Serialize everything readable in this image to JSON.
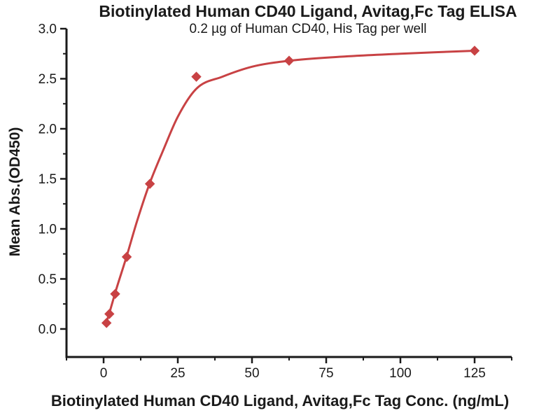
{
  "chart_data": {
    "type": "scatter",
    "title": "Biotinylated Human CD40 Ligand, Avitag,Fc Tag ELISA",
    "subtitle": "0.2 µg of Human CD40, His Tag per well",
    "xlabel": "Biotinylated Human CD40 Ligand, Avitag,Fc Tag Conc. (ng/mL)",
    "ylabel": "Mean Abs.(OD450)",
    "xlim": [
      -12.5,
      137.5
    ],
    "ylim": [
      -0.28,
      3.0
    ],
    "x_major_ticks": [
      0,
      25,
      50,
      75,
      100,
      125
    ],
    "x_minor_ticks": [
      -12.5,
      12.5,
      37.5,
      62.5,
      87.5,
      112.5,
      137.5
    ],
    "y_major_ticks": [
      0.0,
      0.5,
      1.0,
      1.5,
      2.0,
      2.5,
      3.0
    ],
    "y_minor_ticks": [
      0.25,
      0.75,
      1.25,
      1.75,
      2.25,
      2.75
    ],
    "grid": false,
    "legend": null,
    "marker": "diamond",
    "series": [
      {
        "name": "Mean Abs.(OD450)",
        "points": [
          [
            0.98,
            0.06
          ],
          [
            1.95,
            0.15
          ],
          [
            3.9,
            0.35
          ],
          [
            7.8,
            0.72
          ],
          [
            15.6,
            1.45
          ],
          [
            31.25,
            2.52
          ],
          [
            62.5,
            2.68
          ],
          [
            125,
            2.78
          ]
        ]
      }
    ],
    "fit_curve": [
      [
        0.98,
        0.07
      ],
      [
        1.95,
        0.16
      ],
      [
        3.9,
        0.36
      ],
      [
        7.8,
        0.73
      ],
      [
        11.5,
        1.1
      ],
      [
        15.6,
        1.46
      ],
      [
        20,
        1.78
      ],
      [
        25,
        2.12
      ],
      [
        31.25,
        2.4
      ],
      [
        40,
        2.52
      ],
      [
        50,
        2.62
      ],
      [
        62.5,
        2.68
      ],
      [
        80,
        2.72
      ],
      [
        100,
        2.75
      ],
      [
        125,
        2.78
      ]
    ],
    "colors": {
      "series": "#c84244",
      "axis": "#1a1a1a",
      "background": "#ffffff"
    }
  }
}
